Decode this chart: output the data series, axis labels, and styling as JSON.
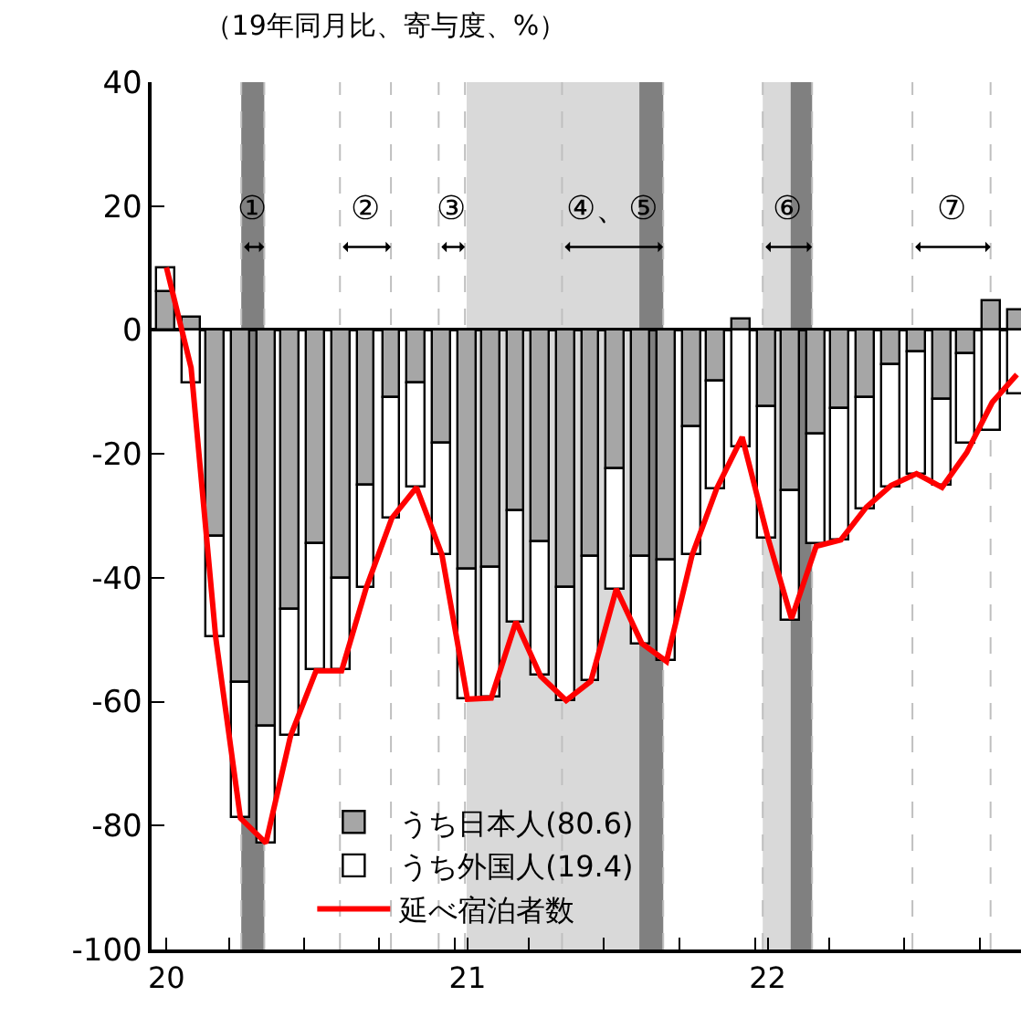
{
  "chart_data": {
    "type": "bar",
    "stacked": true,
    "title": "（19年同月比、寄与度、%）",
    "x": [
      "2020-01-16",
      "2020-02-15",
      "2020-03-16",
      "2020-04-15",
      "2020-05-16",
      "2020-06-15",
      "2020-07-16",
      "2020-08-16",
      "2020-09-15",
      "2020-10-16",
      "2020-11-15",
      "2020-12-16",
      "2021-01-16",
      "2021-02-14",
      "2021-03-16",
      "2021-04-15",
      "2021-05-16",
      "2021-06-15",
      "2021-07-16",
      "2021-08-16",
      "2021-09-15",
      "2021-10-16",
      "2021-11-15",
      "2021-12-16",
      "2022-01-16",
      "2022-02-14",
      "2022-03-16",
      "2022-04-15",
      "2022-05-16",
      "2022-06-15",
      "2022-07-16",
      "2022-08-16",
      "2022-09-15",
      "2022-10-16",
      "2022-11-15"
    ],
    "series": [
      {
        "name": "うち日本人(80.6)",
        "color": "#a6a6a6",
        "values": [
          6,
          2,
          -33.3,
          -57,
          -64,
          -45.1,
          -34.7,
          -40.3,
          -25.1,
          -11.1,
          -8.5,
          -18.4,
          -38.8,
          -38.3,
          -29.3,
          -34.2,
          -41.6,
          -36.6,
          -22.5,
          -36.6,
          -37.1,
          -15.8,
          -8.3,
          1.7,
          -12.4,
          -26.1,
          -17,
          -12.9,
          -11,
          -5.6,
          -3.6,
          -11.4,
          -3.9,
          4.5,
          3.2
        ]
      },
      {
        "name": "うち外国人(19.4)",
        "color": "#ffffff",
        "values": [
          4,
          -8.5,
          -16.4,
          -21.8,
          -19,
          -20.5,
          -20.3,
          -14.7,
          -16.5,
          -19.3,
          -16.9,
          -17.9,
          -20.8,
          -21.1,
          -17.8,
          -21.7,
          -18.2,
          -20.1,
          -19.4,
          -14.1,
          -16.4,
          -20.4,
          -17.3,
          -18.8,
          -21.3,
          -20.7,
          -17.6,
          -21,
          -17.9,
          -19.7,
          -19.8,
          -13.7,
          -14.4,
          -16.3,
          -10.5
        ]
      },
      {
        "name": "延べ宿泊者数",
        "type": "line",
        "color": "#ff0000",
        "values": [
          10.1,
          -6.1,
          -49.7,
          -78.8,
          -82.8,
          -65.5,
          -55,
          -55,
          -41.6,
          -30.4,
          -25.4,
          -36.3,
          -59.6,
          -59.4,
          -47.1,
          -55.9,
          -59.8,
          -56.7,
          -41.8,
          -50.6,
          -53.5,
          -36.4,
          -25.6,
          -17.3,
          -33.4,
          -46.6,
          -34.9,
          -33.9,
          -28.6,
          -25.1,
          -23.2,
          -25.4,
          -19.8,
          -11.7,
          -7.2
        ]
      }
    ],
    "xlim": [
      "2019-12-29",
      "2022-11-20"
    ],
    "xticks": [
      {
        "value": "2020-01-16",
        "label": "20"
      },
      {
        "value": "2020-04-01",
        "label": null
      },
      {
        "value": "2020-07-01",
        "label": null
      },
      {
        "value": "2020-10-01",
        "label": null
      },
      {
        "value": "2021-01-01",
        "label": null
      },
      {
        "value": "2021-01-16",
        "label": "21"
      },
      {
        "value": "2021-04-01",
        "label": null
      },
      {
        "value": "2021-07-01",
        "label": null
      },
      {
        "value": "2021-10-01",
        "label": null
      },
      {
        "value": "2022-01-01",
        "label": null
      },
      {
        "value": "2022-01-16",
        "label": "22"
      },
      {
        "value": "2022-04-01",
        "label": null
      },
      {
        "value": "2022-07-01",
        "label": null
      },
      {
        "value": "2022-10-01",
        "label": null
      }
    ],
    "ylim": [
      -100,
      40
    ],
    "yticks": [
      -100,
      -80,
      -60,
      -40,
      -20,
      0,
      20,
      40
    ],
    "bands": [
      {
        "axis": "x",
        "from": "2021-01-15",
        "to": "2021-09-11",
        "color": "#d9d9d9"
      },
      {
        "axis": "x",
        "from": "2022-01-10",
        "to": "2022-03-11",
        "color": "#d9d9d9"
      },
      {
        "axis": "x",
        "from": "2020-04-16",
        "to": "2020-05-14",
        "color": "#808080"
      },
      {
        "axis": "x",
        "from": "2021-08-13",
        "to": "2021-09-11",
        "color": "#808080"
      },
      {
        "axis": "x",
        "from": "2022-02-13",
        "to": "2022-03-11",
        "color": "#808080"
      }
    ],
    "ref_lines": [
      {
        "axis": "x",
        "value": "2020-04-16",
        "color": "#bfbfbf",
        "line_style": "dashed"
      },
      {
        "axis": "x",
        "value": "2020-05-14",
        "color": "#bfbfbf",
        "line_style": "dashed"
      },
      {
        "axis": "x",
        "value": "2020-08-14",
        "color": "#bfbfbf",
        "line_style": "dashed"
      },
      {
        "axis": "x",
        "value": "2020-10-15",
        "color": "#bfbfbf",
        "line_style": "dashed"
      },
      {
        "axis": "x",
        "value": "2020-12-12",
        "color": "#bfbfbf",
        "line_style": "dashed"
      },
      {
        "axis": "x",
        "value": "2021-01-13",
        "color": "#bfbfbf",
        "line_style": "dashed"
      },
      {
        "axis": "x",
        "value": "2021-05-11",
        "color": "#bfbfbf",
        "line_style": "dashed"
      },
      {
        "axis": "x",
        "value": "2021-09-11",
        "color": "#bfbfbf",
        "line_style": "dashed"
      },
      {
        "axis": "x",
        "value": "2022-01-10",
        "color": "#bfbfbf",
        "line_style": "dashed"
      },
      {
        "axis": "x",
        "value": "2022-03-11",
        "color": "#bfbfbf",
        "line_style": "dashed"
      },
      {
        "axis": "x",
        "value": "2022-07-11",
        "color": "#bfbfbf",
        "line_style": "dashed"
      },
      {
        "axis": "x",
        "value": "2022-10-14",
        "color": "#bfbfbf",
        "line_style": "dashed"
      }
    ],
    "annotations": [
      "①",
      "②",
      "③",
      "④、⑤",
      "⑥",
      "⑦"
    ],
    "legend": "bottom",
    "grid": false
  }
}
